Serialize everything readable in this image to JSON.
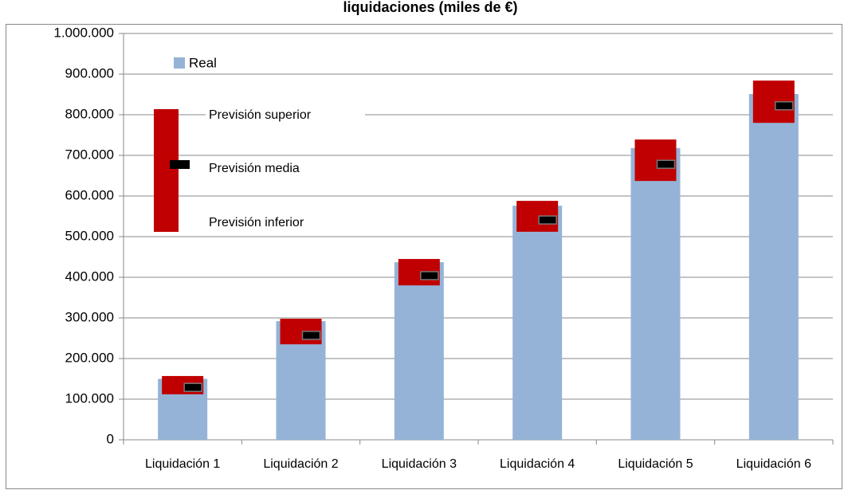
{
  "chart_data": {
    "type": "bar-range",
    "title": "liquidaciones (miles de €)",
    "categories": [
      "Liquidación 1",
      "Liquidación 2",
      "Liquidación 3",
      "Liquidación 4",
      "Liquidación 5",
      "Liquidación 6"
    ],
    "series": [
      {
        "name": "Real",
        "color": "#95b3d7",
        "values": [
          150000,
          292000,
          437000,
          576000,
          718000,
          851000
        ]
      },
      {
        "name": "Previsión superior",
        "color": "#c00000",
        "values": [
          157000,
          298000,
          445000,
          588000,
          739000,
          884000
        ]
      },
      {
        "name": "Previsión media",
        "color": "#000000",
        "values": [
          129000,
          257000,
          404000,
          541000,
          678000,
          822000
        ]
      },
      {
        "name": "Previsión inferior",
        "color": "#c00000",
        "values": [
          112000,
          235000,
          380000,
          512000,
          637000,
          780000
        ]
      }
    ],
    "ylim": [
      0,
      1000000
    ],
    "yticks": [
      0,
      {
        "value": 100000,
        "label": "100.000"
      },
      {
        "value": 200000,
        "label": "200.000"
      },
      {
        "value": 300000,
        "label": "300.000"
      },
      {
        "value": 400000,
        "label": "400.000"
      },
      {
        "value": 500000,
        "label": "500.000"
      },
      {
        "value": 600000,
        "label": "600.000"
      },
      {
        "value": 700000,
        "label": "700.000"
      },
      {
        "value": 800000,
        "label": "800.000"
      },
      {
        "value": 900000,
        "label": "900.000"
      },
      {
        "value": 1000000,
        "label": "1.000.000"
      }
    ],
    "grid": true
  }
}
